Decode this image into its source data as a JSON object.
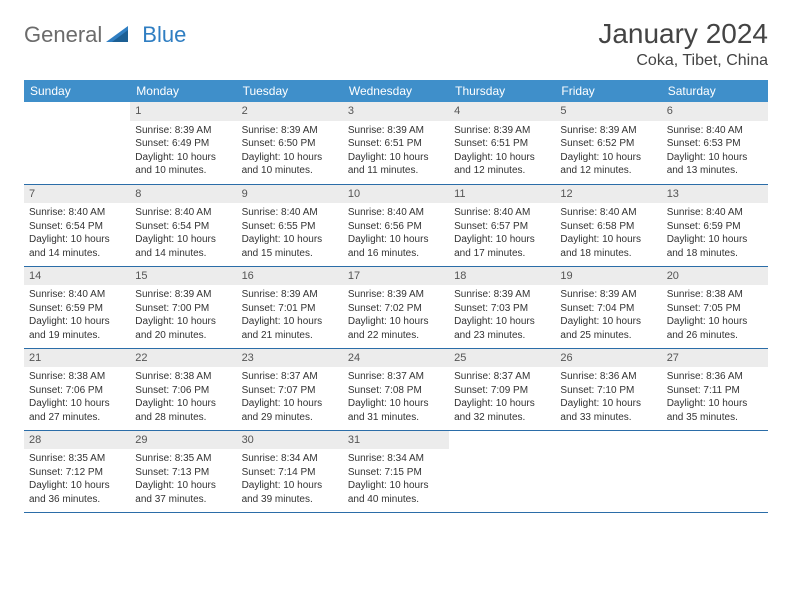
{
  "logo": {
    "general": "General",
    "blue": "Blue"
  },
  "title": "January 2024",
  "location": "Coka, Tibet, China",
  "colors": {
    "header_bg": "#3f8fca",
    "header_text": "#ffffff",
    "daynum_bg": "#ececec",
    "rule": "#2b6da8",
    "logo_blue": "#2f7ec2"
  },
  "weekdays": [
    "Sunday",
    "Monday",
    "Tuesday",
    "Wednesday",
    "Thursday",
    "Friday",
    "Saturday"
  ],
  "weeks": [
    [
      null,
      {
        "n": "1",
        "sunrise": "Sunrise: 8:39 AM",
        "sunset": "Sunset: 6:49 PM",
        "d1": "Daylight: 10 hours",
        "d2": "and 10 minutes."
      },
      {
        "n": "2",
        "sunrise": "Sunrise: 8:39 AM",
        "sunset": "Sunset: 6:50 PM",
        "d1": "Daylight: 10 hours",
        "d2": "and 10 minutes."
      },
      {
        "n": "3",
        "sunrise": "Sunrise: 8:39 AM",
        "sunset": "Sunset: 6:51 PM",
        "d1": "Daylight: 10 hours",
        "d2": "and 11 minutes."
      },
      {
        "n": "4",
        "sunrise": "Sunrise: 8:39 AM",
        "sunset": "Sunset: 6:51 PM",
        "d1": "Daylight: 10 hours",
        "d2": "and 12 minutes."
      },
      {
        "n": "5",
        "sunrise": "Sunrise: 8:39 AM",
        "sunset": "Sunset: 6:52 PM",
        "d1": "Daylight: 10 hours",
        "d2": "and 12 minutes."
      },
      {
        "n": "6",
        "sunrise": "Sunrise: 8:40 AM",
        "sunset": "Sunset: 6:53 PM",
        "d1": "Daylight: 10 hours",
        "d2": "and 13 minutes."
      }
    ],
    [
      {
        "n": "7",
        "sunrise": "Sunrise: 8:40 AM",
        "sunset": "Sunset: 6:54 PM",
        "d1": "Daylight: 10 hours",
        "d2": "and 14 minutes."
      },
      {
        "n": "8",
        "sunrise": "Sunrise: 8:40 AM",
        "sunset": "Sunset: 6:54 PM",
        "d1": "Daylight: 10 hours",
        "d2": "and 14 minutes."
      },
      {
        "n": "9",
        "sunrise": "Sunrise: 8:40 AM",
        "sunset": "Sunset: 6:55 PM",
        "d1": "Daylight: 10 hours",
        "d2": "and 15 minutes."
      },
      {
        "n": "10",
        "sunrise": "Sunrise: 8:40 AM",
        "sunset": "Sunset: 6:56 PM",
        "d1": "Daylight: 10 hours",
        "d2": "and 16 minutes."
      },
      {
        "n": "11",
        "sunrise": "Sunrise: 8:40 AM",
        "sunset": "Sunset: 6:57 PM",
        "d1": "Daylight: 10 hours",
        "d2": "and 17 minutes."
      },
      {
        "n": "12",
        "sunrise": "Sunrise: 8:40 AM",
        "sunset": "Sunset: 6:58 PM",
        "d1": "Daylight: 10 hours",
        "d2": "and 18 minutes."
      },
      {
        "n": "13",
        "sunrise": "Sunrise: 8:40 AM",
        "sunset": "Sunset: 6:59 PM",
        "d1": "Daylight: 10 hours",
        "d2": "and 18 minutes."
      }
    ],
    [
      {
        "n": "14",
        "sunrise": "Sunrise: 8:40 AM",
        "sunset": "Sunset: 6:59 PM",
        "d1": "Daylight: 10 hours",
        "d2": "and 19 minutes."
      },
      {
        "n": "15",
        "sunrise": "Sunrise: 8:39 AM",
        "sunset": "Sunset: 7:00 PM",
        "d1": "Daylight: 10 hours",
        "d2": "and 20 minutes."
      },
      {
        "n": "16",
        "sunrise": "Sunrise: 8:39 AM",
        "sunset": "Sunset: 7:01 PM",
        "d1": "Daylight: 10 hours",
        "d2": "and 21 minutes."
      },
      {
        "n": "17",
        "sunrise": "Sunrise: 8:39 AM",
        "sunset": "Sunset: 7:02 PM",
        "d1": "Daylight: 10 hours",
        "d2": "and 22 minutes."
      },
      {
        "n": "18",
        "sunrise": "Sunrise: 8:39 AM",
        "sunset": "Sunset: 7:03 PM",
        "d1": "Daylight: 10 hours",
        "d2": "and 23 minutes."
      },
      {
        "n": "19",
        "sunrise": "Sunrise: 8:39 AM",
        "sunset": "Sunset: 7:04 PM",
        "d1": "Daylight: 10 hours",
        "d2": "and 25 minutes."
      },
      {
        "n": "20",
        "sunrise": "Sunrise: 8:38 AM",
        "sunset": "Sunset: 7:05 PM",
        "d1": "Daylight: 10 hours",
        "d2": "and 26 minutes."
      }
    ],
    [
      {
        "n": "21",
        "sunrise": "Sunrise: 8:38 AM",
        "sunset": "Sunset: 7:06 PM",
        "d1": "Daylight: 10 hours",
        "d2": "and 27 minutes."
      },
      {
        "n": "22",
        "sunrise": "Sunrise: 8:38 AM",
        "sunset": "Sunset: 7:06 PM",
        "d1": "Daylight: 10 hours",
        "d2": "and 28 minutes."
      },
      {
        "n": "23",
        "sunrise": "Sunrise: 8:37 AM",
        "sunset": "Sunset: 7:07 PM",
        "d1": "Daylight: 10 hours",
        "d2": "and 29 minutes."
      },
      {
        "n": "24",
        "sunrise": "Sunrise: 8:37 AM",
        "sunset": "Sunset: 7:08 PM",
        "d1": "Daylight: 10 hours",
        "d2": "and 31 minutes."
      },
      {
        "n": "25",
        "sunrise": "Sunrise: 8:37 AM",
        "sunset": "Sunset: 7:09 PM",
        "d1": "Daylight: 10 hours",
        "d2": "and 32 minutes."
      },
      {
        "n": "26",
        "sunrise": "Sunrise: 8:36 AM",
        "sunset": "Sunset: 7:10 PM",
        "d1": "Daylight: 10 hours",
        "d2": "and 33 minutes."
      },
      {
        "n": "27",
        "sunrise": "Sunrise: 8:36 AM",
        "sunset": "Sunset: 7:11 PM",
        "d1": "Daylight: 10 hours",
        "d2": "and 35 minutes."
      }
    ],
    [
      {
        "n": "28",
        "sunrise": "Sunrise: 8:35 AM",
        "sunset": "Sunset: 7:12 PM",
        "d1": "Daylight: 10 hours",
        "d2": "and 36 minutes."
      },
      {
        "n": "29",
        "sunrise": "Sunrise: 8:35 AM",
        "sunset": "Sunset: 7:13 PM",
        "d1": "Daylight: 10 hours",
        "d2": "and 37 minutes."
      },
      {
        "n": "30",
        "sunrise": "Sunrise: 8:34 AM",
        "sunset": "Sunset: 7:14 PM",
        "d1": "Daylight: 10 hours",
        "d2": "and 39 minutes."
      },
      {
        "n": "31",
        "sunrise": "Sunrise: 8:34 AM",
        "sunset": "Sunset: 7:15 PM",
        "d1": "Daylight: 10 hours",
        "d2": "and 40 minutes."
      },
      null,
      null,
      null
    ]
  ]
}
